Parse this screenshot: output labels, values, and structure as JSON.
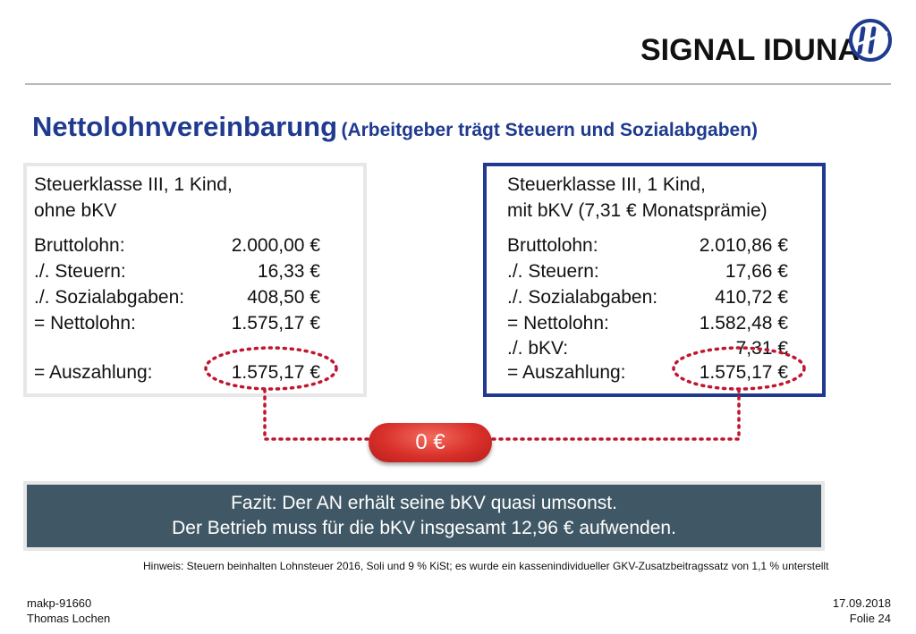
{
  "header": {
    "logo_text": "SIGNAL IDUNA",
    "logo_icon": "signal-iduna-logo-icon"
  },
  "title": {
    "main": "Nettolohnvereinbarung",
    "sub": "(Arbeitgeber trägt Steuern und Sozialabgaben)"
  },
  "left_card": {
    "line1": "Steuerklasse III, 1 Kind,",
    "line2": "ohne bKV",
    "rows": [
      {
        "label": "Bruttolohn:",
        "value": "2.000,00 €"
      },
      {
        "label": "./. Steuern:",
        "value": "16,33 €"
      },
      {
        "label": "./. Sozialabgaben:",
        "value": "408,50 €"
      },
      {
        "label": "= Nettolohn:",
        "value": "1.575,17 €"
      }
    ],
    "payout": {
      "label": "= Auszahlung:",
      "value": "1.575,17 €"
    }
  },
  "right_card": {
    "line1": "Steuerklasse III, 1 Kind,",
    "line2": "mit bKV (7,31 € Monatsprämie)",
    "rows": [
      {
        "label": "Bruttolohn:",
        "value": "2.010,86 €"
      },
      {
        "label": "./. Steuern:",
        "value": "17,66 €"
      },
      {
        "label": "./. Sozialabgaben:",
        "value": "410,72 €"
      },
      {
        "label": "= Nettolohn:",
        "value": "1.582,48 €"
      },
      {
        "label": "./. bKV:",
        "value": "7,31 €"
      }
    ],
    "payout": {
      "label": "= Auszahlung:",
      "value": "1.575,17 €"
    }
  },
  "difference_badge": "0 €",
  "fazit": {
    "line1": "Fazit: Der AN erhält seine bKV quasi umsonst.",
    "line2": "Der Betrieb muss für die bKV insgesamt 12,96 € aufwenden."
  },
  "hinweis": "Hinweis: Steuern beinhalten Lohnsteuer 2016, Soli und 9 % KiSt; es wurde ein kassenindividueller GKV-Zusatzbeitragssatz von 1,1 % unterstellt",
  "footer": {
    "code": "makp-91660",
    "author": "Thomas Lochen",
    "date": "17.09.2018",
    "slide": "Folie 24"
  },
  "colors": {
    "title_blue": "#1f3a8f",
    "badge_red": "#d9302a",
    "fazit_bg": "#405866",
    "dotted_red": "#c0162f"
  }
}
